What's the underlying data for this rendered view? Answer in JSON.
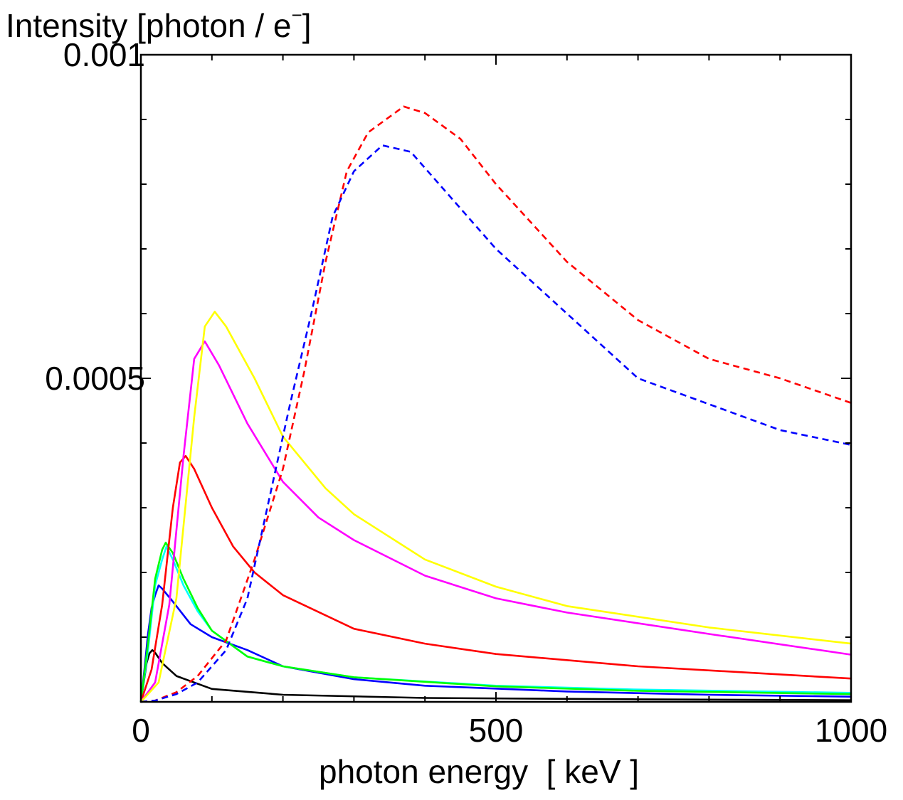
{
  "chart_data": {
    "type": "line",
    "ylabel": "Intensity [photon / e",
    "ylabel_superscript": "−",
    "ylabel_suffix": "]",
    "xlabel": "photon energy  [ keV ]",
    "xlim": [
      0,
      1000
    ],
    "ylim": [
      0,
      0.001
    ],
    "x_ticks": [
      {
        "value": 0,
        "label": "0"
      },
      {
        "value": 500,
        "label": "500"
      },
      {
        "value": 1000,
        "label": "1000"
      }
    ],
    "y_ticks": [
      {
        "value": 0.0005,
        "label": "0.0005"
      },
      {
        "value": 0.001,
        "label": "0.001"
      }
    ],
    "x_minor_step": 100,
    "y_minor_step": 0.0001,
    "grid": false,
    "series": [
      {
        "color": "#000000",
        "dash": false,
        "values": [
          [
            0,
            0
          ],
          [
            4,
            3e-05
          ],
          [
            8,
            6e-05
          ],
          [
            12,
            7.5e-05
          ],
          [
            16,
            8e-05
          ],
          [
            20,
            7.6e-05
          ],
          [
            30,
            6e-05
          ],
          [
            50,
            4e-05
          ],
          [
            100,
            2e-05
          ],
          [
            200,
            1.1e-05
          ],
          [
            400,
            6e-06
          ],
          [
            700,
            4e-06
          ],
          [
            1000,
            2.5e-06
          ]
        ]
      },
      {
        "color": "#0000ff",
        "dash": false,
        "values": [
          [
            0,
            0
          ],
          [
            5,
            5e-05
          ],
          [
            10,
            0.000105
          ],
          [
            15,
            0.000145
          ],
          [
            20,
            0.000165
          ],
          [
            25,
            0.00018
          ],
          [
            30,
            0.000175
          ],
          [
            45,
            0.000155
          ],
          [
            70,
            0.00012
          ],
          [
            100,
            0.0001
          ],
          [
            150,
            8e-05
          ],
          [
            200,
            5.5e-05
          ],
          [
            300,
            3.5e-05
          ],
          [
            400,
            2.5e-05
          ],
          [
            600,
            1.6e-05
          ],
          [
            800,
            1.1e-05
          ],
          [
            1000,
            8e-06
          ]
        ]
      },
      {
        "color": "#00ffff",
        "dash": false,
        "values": [
          [
            0,
            0
          ],
          [
            10,
            8e-05
          ],
          [
            20,
            0.00018
          ],
          [
            30,
            0.00022
          ],
          [
            36,
            0.00024
          ],
          [
            45,
            0.00022
          ],
          [
            60,
            0.00018
          ],
          [
            80,
            0.00014
          ],
          [
            100,
            0.00011
          ],
          [
            150,
            7e-05
          ],
          [
            200,
            5.5e-05
          ],
          [
            300,
            3.8e-05
          ],
          [
            500,
            2.5e-05
          ],
          [
            700,
            1.9e-05
          ],
          [
            1000,
            1.4e-05
          ]
        ]
      },
      {
        "color": "#00ff00",
        "dash": false,
        "values": [
          [
            0,
            0
          ],
          [
            10,
            9e-05
          ],
          [
            20,
            0.00019
          ],
          [
            30,
            0.000235
          ],
          [
            35,
            0.000246
          ],
          [
            45,
            0.00023
          ],
          [
            60,
            0.00019
          ],
          [
            80,
            0.000145
          ],
          [
            100,
            0.00011
          ],
          [
            150,
            7e-05
          ],
          [
            200,
            5.5e-05
          ],
          [
            300,
            3.8e-05
          ],
          [
            500,
            2.4e-05
          ],
          [
            700,
            1.7e-05
          ],
          [
            1000,
            1.2e-05
          ]
        ]
      },
      {
        "color": "#ff0000",
        "dash": false,
        "values": [
          [
            0,
            0
          ],
          [
            15,
            5e-05
          ],
          [
            30,
            0.00015
          ],
          [
            45,
            0.0003
          ],
          [
            55,
            0.00037
          ],
          [
            63,
            0.00038
          ],
          [
            75,
            0.00036
          ],
          [
            100,
            0.0003
          ],
          [
            130,
            0.00024
          ],
          [
            160,
            0.0002
          ],
          [
            200,
            0.000165
          ],
          [
            300,
            0.000113
          ],
          [
            400,
            9e-05
          ],
          [
            500,
            7.4e-05
          ],
          [
            700,
            5.5e-05
          ],
          [
            1000,
            3.6e-05
          ]
        ]
      },
      {
        "color": "#ff00ff",
        "dash": false,
        "values": [
          [
            0,
            0
          ],
          [
            20,
            3e-05
          ],
          [
            40,
            0.00015
          ],
          [
            60,
            0.00038
          ],
          [
            75,
            0.00053
          ],
          [
            90,
            0.000557
          ],
          [
            110,
            0.00052
          ],
          [
            150,
            0.00043
          ],
          [
            200,
            0.00034
          ],
          [
            250,
            0.000285
          ],
          [
            300,
            0.00025
          ],
          [
            400,
            0.000195
          ],
          [
            500,
            0.00016
          ],
          [
            600,
            0.000138
          ],
          [
            800,
            0.000105
          ],
          [
            1000,
            7.3e-05
          ]
        ]
      },
      {
        "color": "#ffff00",
        "dash": false,
        "values": [
          [
            0,
            0
          ],
          [
            25,
            3e-05
          ],
          [
            50,
            0.00016
          ],
          [
            75,
            0.00044
          ],
          [
            90,
            0.00058
          ],
          [
            104,
            0.000603
          ],
          [
            120,
            0.00058
          ],
          [
            160,
            0.0005
          ],
          [
            200,
            0.00041
          ],
          [
            260,
            0.00033
          ],
          [
            300,
            0.00029
          ],
          [
            400,
            0.00022
          ],
          [
            500,
            0.000178
          ],
          [
            600,
            0.000148
          ],
          [
            800,
            0.000115
          ],
          [
            1000,
            9e-05
          ]
        ]
      },
      {
        "color": "#ff0000",
        "dash": true,
        "values": [
          [
            0,
            0
          ],
          [
            20,
            2e-06
          ],
          [
            50,
            1.5e-05
          ],
          [
            80,
            4e-05
          ],
          [
            120,
            9.5e-05
          ],
          [
            160,
            0.00022
          ],
          [
            200,
            0.00036
          ],
          [
            230,
            0.00051
          ],
          [
            260,
            0.00068
          ],
          [
            290,
            0.00082
          ],
          [
            320,
            0.00088
          ],
          [
            370,
            0.00092
          ],
          [
            400,
            0.00091
          ],
          [
            450,
            0.00087
          ],
          [
            500,
            0.0008
          ],
          [
            600,
            0.00068
          ],
          [
            700,
            0.00059
          ],
          [
            800,
            0.00053
          ],
          [
            900,
            0.0005
          ],
          [
            1000,
            0.000462
          ]
        ]
      },
      {
        "color": "#0000ff",
        "dash": true,
        "values": [
          [
            0,
            0
          ],
          [
            20,
            2e-06
          ],
          [
            50,
            1.2e-05
          ],
          [
            80,
            3e-05
          ],
          [
            120,
            8e-05
          ],
          [
            150,
            0.00016
          ],
          [
            180,
            0.00031
          ],
          [
            210,
            0.00046
          ],
          [
            240,
            0.0006
          ],
          [
            270,
            0.00075
          ],
          [
            300,
            0.00082
          ],
          [
            340,
            0.00086
          ],
          [
            380,
            0.00085
          ],
          [
            420,
            0.0008
          ],
          [
            500,
            0.0007
          ],
          [
            600,
            0.0006
          ],
          [
            700,
            0.0005
          ],
          [
            800,
            0.00046
          ],
          [
            900,
            0.00042
          ],
          [
            1000,
            0.000397
          ]
        ]
      }
    ]
  }
}
